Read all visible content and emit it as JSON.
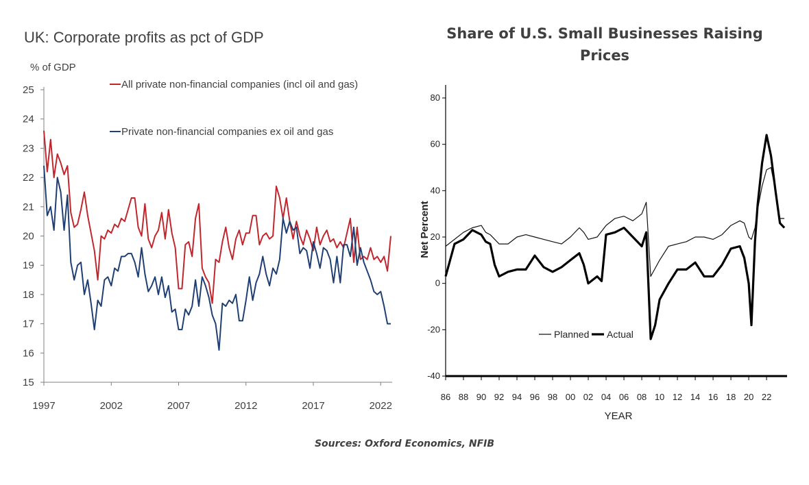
{
  "footer": {
    "sources": "Sources: Oxford Economics, NFIB"
  },
  "chart_data": [
    {
      "type": "line",
      "title": "UK: Corporate profits as pct of GDP",
      "ylabel": "% of GDP",
      "ylim": [
        15,
        25
      ],
      "yticks": [
        "15",
        "16",
        "17",
        "18",
        "19",
        "20",
        "21",
        "22",
        "23",
        "24",
        "25"
      ],
      "xticks": [
        "1997",
        "2002",
        "2007",
        "2012",
        "2017",
        "2022"
      ],
      "xlim": [
        1997,
        2022.75
      ],
      "legend": "top-right",
      "series": [
        {
          "name": "All private non-financial companies (incl oil and gas)",
          "color": "#c0272d",
          "x": [
            1997.0,
            1997.25,
            1997.5,
            1997.75,
            1998.0,
            1998.25,
            1998.5,
            1998.75,
            1999.0,
            1999.25,
            1999.5,
            1999.75,
            2000.0,
            2000.25,
            2000.5,
            2000.75,
            2001.0,
            2001.25,
            2001.5,
            2001.75,
            2002.0,
            2002.25,
            2002.5,
            2002.75,
            2003.0,
            2003.25,
            2003.5,
            2003.75,
            2004.0,
            2004.25,
            2004.5,
            2004.75,
            2005.0,
            2005.25,
            2005.5,
            2005.75,
            2006.0,
            2006.25,
            2006.5,
            2006.75,
            2007.0,
            2007.25,
            2007.5,
            2007.75,
            2008.0,
            2008.25,
            2008.5,
            2008.75,
            2009.0,
            2009.25,
            2009.5,
            2009.75,
            2010.0,
            2010.25,
            2010.5,
            2010.75,
            2011.0,
            2011.25,
            2011.5,
            2011.75,
            2012.0,
            2012.25,
            2012.5,
            2012.75,
            2013.0,
            2013.25,
            2013.5,
            2013.75,
            2014.0,
            2014.25,
            2014.5,
            2014.75,
            2015.0,
            2015.25,
            2015.5,
            2015.75,
            2016.0,
            2016.25,
            2016.5,
            2016.75,
            2017.0,
            2017.25,
            2017.5,
            2017.75,
            2018.0,
            2018.25,
            2018.5,
            2018.75,
            2019.0,
            2019.25,
            2019.5,
            2019.75,
            2020.0,
            2020.25,
            2020.5,
            2020.75,
            2021.0,
            2021.25,
            2021.5,
            2021.75,
            2022.0,
            2022.25,
            2022.5,
            2022.75
          ],
          "values": [
            23.6,
            22.2,
            23.3,
            22.0,
            22.8,
            22.5,
            22.1,
            22.4,
            20.8,
            20.3,
            20.4,
            20.9,
            21.5,
            20.7,
            20.1,
            19.5,
            18.5,
            20.0,
            19.9,
            20.2,
            20.1,
            20.4,
            20.3,
            20.6,
            20.5,
            20.9,
            21.3,
            21.3,
            20.3,
            20.0,
            21.1,
            19.9,
            19.6,
            20.0,
            20.2,
            20.8,
            19.9,
            20.9,
            20.1,
            19.6,
            18.2,
            18.2,
            19.7,
            19.8,
            19.3,
            20.6,
            21.1,
            18.9,
            18.6,
            18.4,
            17.7,
            19.2,
            19.1,
            19.8,
            20.3,
            19.6,
            19.2,
            19.9,
            20.2,
            19.7,
            20.1,
            20.1,
            20.7,
            20.7,
            19.7,
            20.0,
            20.1,
            19.9,
            20.0,
            21.7,
            21.3,
            20.6,
            21.3,
            20.5,
            19.9,
            20.5,
            20.0,
            19.7,
            20.2,
            19.9,
            19.5,
            20.3,
            19.7,
            20.0,
            20.2,
            19.8,
            19.9,
            19.6,
            19.8,
            19.6,
            20.1,
            20.6,
            19.1,
            20.3,
            19.2,
            19.3,
            19.2,
            19.6,
            19.2,
            19.3,
            19.1,
            19.3,
            18.8,
            20.0
          ]
        },
        {
          "name": "Private non-financial companies ex oil and gas",
          "color": "#1f3f73",
          "x": [
            1997.0,
            1997.25,
            1997.5,
            1997.75,
            1998.0,
            1998.25,
            1998.5,
            1998.75,
            1999.0,
            1999.25,
            1999.5,
            1999.75,
            2000.0,
            2000.25,
            2000.5,
            2000.75,
            2001.0,
            2001.25,
            2001.5,
            2001.75,
            2002.0,
            2002.25,
            2002.5,
            2002.75,
            2003.0,
            2003.25,
            2003.5,
            2003.75,
            2004.0,
            2004.25,
            2004.5,
            2004.75,
            2005.0,
            2005.25,
            2005.5,
            2005.75,
            2006.0,
            2006.25,
            2006.5,
            2006.75,
            2007.0,
            2007.25,
            2007.5,
            2007.75,
            2008.0,
            2008.25,
            2008.5,
            2008.75,
            2009.0,
            2009.25,
            2009.5,
            2009.75,
            2010.0,
            2010.25,
            2010.5,
            2010.75,
            2011.0,
            2011.25,
            2011.5,
            2011.75,
            2012.0,
            2012.25,
            2012.5,
            2012.75,
            2013.0,
            2013.25,
            2013.5,
            2013.75,
            2014.0,
            2014.25,
            2014.5,
            2014.75,
            2015.0,
            2015.25,
            2015.5,
            2015.75,
            2016.0,
            2016.25,
            2016.5,
            2016.75,
            2017.0,
            2017.25,
            2017.5,
            2017.75,
            2018.0,
            2018.25,
            2018.5,
            2018.75,
            2019.0,
            2019.25,
            2019.5,
            2019.75,
            2020.0,
            2020.25,
            2020.5,
            2020.75,
            2021.0,
            2021.25,
            2021.5,
            2021.75,
            2022.0,
            2022.25,
            2022.5,
            2022.75
          ],
          "values": [
            22.4,
            20.7,
            21.0,
            20.2,
            22.0,
            21.5,
            20.2,
            21.4,
            19.1,
            18.5,
            19.0,
            19.1,
            18.0,
            18.5,
            17.7,
            16.8,
            17.8,
            17.6,
            18.5,
            18.6,
            18.3,
            18.9,
            18.8,
            19.3,
            19.3,
            19.4,
            19.4,
            19.1,
            18.6,
            19.6,
            18.7,
            18.1,
            18.3,
            18.6,
            18.0,
            18.6,
            17.9,
            18.3,
            17.4,
            17.5,
            16.8,
            16.8,
            17.5,
            17.3,
            17.6,
            18.5,
            17.6,
            18.6,
            18.3,
            17.9,
            17.3,
            17.0,
            16.1,
            17.7,
            17.6,
            17.8,
            17.7,
            18.0,
            17.1,
            17.1,
            17.8,
            18.6,
            17.8,
            18.4,
            18.7,
            19.3,
            18.7,
            18.3,
            18.9,
            18.7,
            19.2,
            20.6,
            20.1,
            20.5,
            20.2,
            20.3,
            19.4,
            19.6,
            19.5,
            18.9,
            19.8,
            19.4,
            18.9,
            19.6,
            19.5,
            19.2,
            18.4,
            19.3,
            18.4,
            19.7,
            19.7,
            19.3,
            20.3,
            19.0,
            19.6,
            19.1,
            18.8,
            18.5,
            18.1,
            18.0,
            18.1,
            17.6,
            17.0,
            17.0
          ]
        }
      ]
    },
    {
      "type": "line",
      "title": "Share of U.S. Small Businesses Raising Prices",
      "xlabel": "YEAR",
      "ylabel": "Net Percent",
      "ylim": [
        -40,
        80
      ],
      "yticks": [
        "-40",
        "-20",
        "0",
        "20",
        "40",
        "60",
        "80"
      ],
      "xticks": [
        "86",
        "88",
        "90",
        "92",
        "94",
        "96",
        "98",
        "00",
        "02",
        "04",
        "06",
        "08",
        "10",
        "12",
        "14",
        "16",
        "18",
        "20",
        "22"
      ],
      "xlim": [
        1986,
        2024.3
      ],
      "legend": "bottom-center",
      "series": [
        {
          "name": "Planned",
          "color": "#111111",
          "x": [
            1986.0,
            1987.0,
            1988.0,
            1989.0,
            1990.0,
            1990.5,
            1991.0,
            1992.0,
            1993.0,
            1994.0,
            1995.0,
            1996.0,
            1997.0,
            1998.0,
            1999.0,
            2000.0,
            2001.0,
            2001.5,
            2002.0,
            2003.0,
            2004.0,
            2005.0,
            2006.0,
            2007.0,
            2008.0,
            2008.5,
            2009.0,
            2010.0,
            2011.0,
            2012.0,
            2013.0,
            2014.0,
            2015.0,
            2016.0,
            2017.0,
            2018.0,
            2019.0,
            2019.5,
            2020.0,
            2020.3,
            2020.7,
            2021.0,
            2021.5,
            2022.0,
            2022.5,
            2023.0,
            2023.5,
            2024.0
          ],
          "values": [
            16,
            19,
            22,
            24,
            25,
            22,
            21,
            17,
            17,
            20,
            21,
            20,
            19,
            18,
            17,
            20,
            24,
            22,
            19,
            20,
            25,
            28,
            29,
            27,
            30,
            35,
            3,
            10,
            16,
            17,
            18,
            20,
            20,
            19,
            21,
            25,
            27,
            26,
            20,
            19,
            24,
            32,
            42,
            49,
            50,
            40,
            28,
            28
          ]
        },
        {
          "name": "Actual",
          "color": "#000000",
          "x": [
            1986.0,
            1987.0,
            1988.0,
            1989.0,
            1990.0,
            1990.5,
            1991.0,
            1991.5,
            1992.0,
            1993.0,
            1994.0,
            1995.0,
            1996.0,
            1997.0,
            1998.0,
            1999.0,
            2000.0,
            2001.0,
            2001.5,
            2002.0,
            2003.0,
            2003.5,
            2004.0,
            2005.0,
            2006.0,
            2007.0,
            2008.0,
            2008.5,
            2009.0,
            2009.5,
            2010.0,
            2011.0,
            2012.0,
            2013.0,
            2014.0,
            2015.0,
            2016.0,
            2017.0,
            2018.0,
            2019.0,
            2019.5,
            2020.0,
            2020.3,
            2020.7,
            2021.0,
            2021.5,
            2022.0,
            2022.5,
            2023.0,
            2023.5,
            2024.0
          ],
          "values": [
            3,
            17,
            19,
            23,
            21,
            18,
            17,
            8,
            3,
            5,
            6,
            6,
            12,
            7,
            5,
            7,
            10,
            13,
            8,
            0,
            3,
            1,
            21,
            22,
            24,
            20,
            16,
            22,
            -24,
            -18,
            -7,
            0,
            6,
            6,
            9,
            3,
            3,
            8,
            15,
            16,
            11,
            0,
            -18,
            18,
            34,
            52,
            64,
            55,
            40,
            26,
            24
          ]
        }
      ]
    }
  ]
}
